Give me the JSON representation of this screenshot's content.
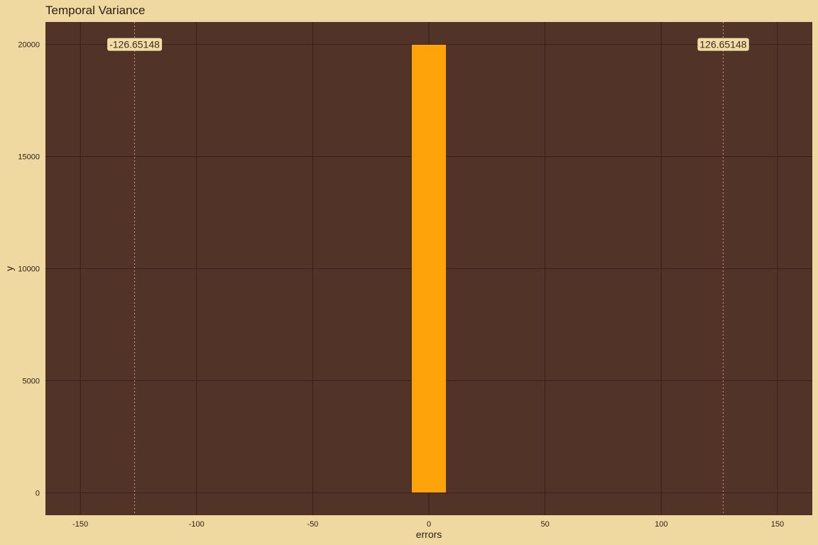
{
  "chart_data": {
    "type": "bar",
    "title": "Temporal Variance",
    "xlabel": "errors",
    "ylabel": "y",
    "xlim": [
      -165,
      165
    ],
    "ylim": [
      -1000,
      21000
    ],
    "xticks": [
      -150,
      -100,
      -50,
      0,
      50,
      100,
      150
    ],
    "yticks": [
      0,
      5000,
      10000,
      15000,
      20000
    ],
    "bars": [
      {
        "x_start": -7.5,
        "x_end": 7.5,
        "value": 20000
      }
    ],
    "reference_lines": [
      {
        "x": -126.65148,
        "label": "-126.65148"
      },
      {
        "x": 126.65148,
        "label": "126.65148"
      }
    ],
    "grid": true,
    "colors": {
      "page_background": "#efd9a0",
      "panel_background": "#513328",
      "grid": "#3a1a12",
      "bar": "#ffa30a",
      "bar_outline": "#3a1f12",
      "reference_line": "#c28a6e",
      "label_fill": "#f2dda5"
    }
  }
}
